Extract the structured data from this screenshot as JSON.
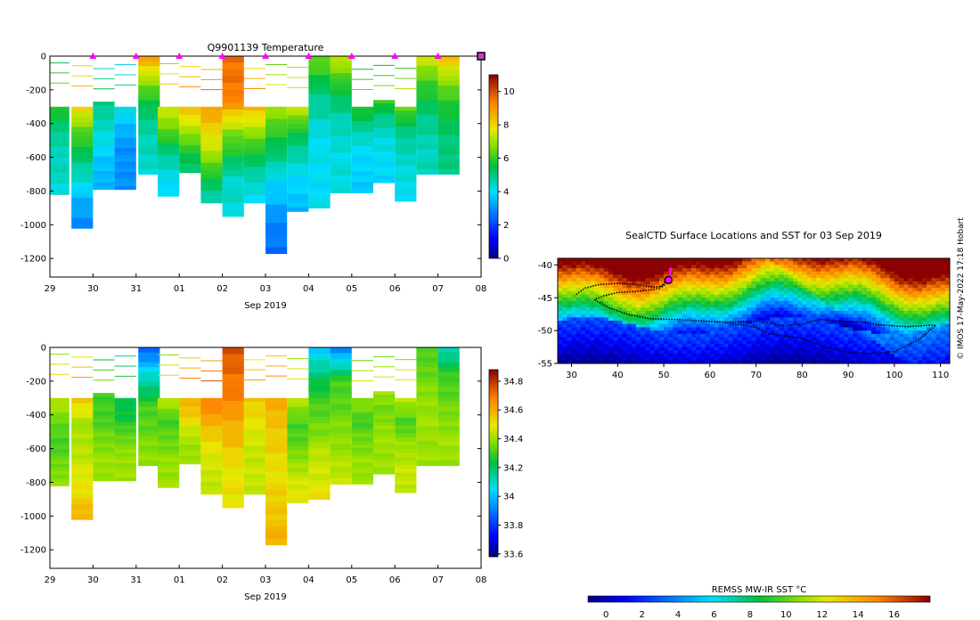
{
  "chart_data": [
    {
      "type": "heatmap",
      "id": "temp",
      "title": "Q9901139  Temperature",
      "xlabel": "Sep 2019",
      "x_tick_labels": [
        "29",
        "30",
        "31",
        "01",
        "02",
        "03",
        "04",
        "05",
        "06",
        "07",
        "08"
      ],
      "y_ticks": [
        0,
        -200,
        -400,
        -600,
        -800,
        -1000,
        -1200
      ],
      "ylim": [
        -1310,
        0
      ],
      "colorbar": {
        "min": 0,
        "max": 11,
        "ticks": [
          0,
          2,
          4,
          6,
          8,
          10
        ]
      },
      "surface_markers_at": [
        1,
        2,
        3,
        4,
        5,
        6,
        7,
        8,
        9,
        10
      ],
      "end_marker_at": 10,
      "profiles": [
        {
          "t": 0.2,
          "depth": 820,
          "top": 300,
          "c": [
            6,
            5,
            4.5,
            4.5,
            4.2
          ]
        },
        {
          "t": 0.75,
          "depth": 1020,
          "top": 300,
          "c": [
            8,
            6,
            4.8,
            3.5,
            2.8
          ]
        },
        {
          "t": 1.25,
          "depth": 790,
          "top": 270,
          "c": [
            5,
            4.5,
            4,
            3.5,
            3.5
          ]
        },
        {
          "t": 1.75,
          "depth": 790,
          "top": 300,
          "c": [
            4.2,
            3.5,
            3,
            3,
            3
          ]
        },
        {
          "t": 2.3,
          "depth": 700,
          "top": 0,
          "c": [
            9,
            6.5,
            5,
            4.5,
            4.3
          ]
        },
        {
          "t": 2.75,
          "depth": 830,
          "top": 300,
          "c": [
            7.5,
            6.5,
            5,
            4.2,
            3.8
          ]
        },
        {
          "t": 3.25,
          "depth": 690,
          "top": 300,
          "c": [
            8.5,
            7.5,
            6.5,
            5.5,
            5
          ]
        },
        {
          "t": 3.75,
          "depth": 870,
          "top": 300,
          "c": [
            9,
            8,
            7,
            5.5,
            4.5
          ]
        },
        {
          "t": 4.25,
          "depth": 950,
          "top": 0,
          "c": [
            9.5,
            9.5,
            6.5,
            4.5,
            4.2
          ]
        },
        {
          "t": 4.75,
          "depth": 870,
          "top": 300,
          "c": [
            8.5,
            7,
            5.5,
            4.5,
            4
          ]
        },
        {
          "t": 5.25,
          "depth": 1170,
          "top": 300,
          "c": [
            7,
            5.5,
            4,
            3,
            2.5
          ]
        },
        {
          "t": 5.75,
          "depth": 920,
          "top": 300,
          "c": [
            7.5,
            5.5,
            4.5,
            3.8,
            3.5
          ]
        },
        {
          "t": 6.25,
          "depth": 900,
          "top": 0,
          "c": [
            6.5,
            5,
            4.2,
            4,
            4
          ]
        },
        {
          "t": 6.75,
          "depth": 810,
          "top": 0,
          "c": [
            7.5,
            5.5,
            4.5,
            4.2,
            4.2
          ]
        },
        {
          "t": 7.25,
          "depth": 810,
          "top": 300,
          "c": [
            6,
            4.8,
            4,
            3.8,
            3.7
          ]
        },
        {
          "t": 7.75,
          "depth": 750,
          "top": 260,
          "c": [
            6,
            4.8,
            4.2,
            4,
            3.8
          ]
        },
        {
          "t": 8.25,
          "depth": 860,
          "top": 300,
          "c": [
            6.5,
            5,
            4.5,
            4.2,
            4
          ]
        },
        {
          "t": 8.75,
          "depth": 700,
          "top": 0,
          "c": [
            7.5,
            6,
            5,
            4.5,
            4.5
          ]
        },
        {
          "t": 9.25,
          "depth": 700,
          "top": 0,
          "c": [
            8.5,
            6.5,
            5.5,
            5,
            5
          ]
        }
      ]
    },
    {
      "type": "heatmap",
      "id": "sal",
      "title": "",
      "xlabel": "Sep 2019",
      "x_tick_labels": [
        "29",
        "30",
        "31",
        "01",
        "02",
        "03",
        "04",
        "05",
        "06",
        "07",
        "08"
      ],
      "y_ticks": [
        0,
        -200,
        -400,
        -600,
        -800,
        -1000,
        -1200
      ],
      "ylim": [
        -1310,
        0
      ],
      "colorbar": {
        "min": 33.58,
        "max": 34.88,
        "ticks": [
          33.6,
          33.8,
          34,
          34.2,
          34.4,
          34.6,
          34.8
        ]
      },
      "profiles": [
        {
          "t": 0.2,
          "depth": 820,
          "top": 300,
          "c": [
            34.45,
            34.35,
            34.3,
            34.35,
            34.4
          ]
        },
        {
          "t": 0.75,
          "depth": 1020,
          "top": 300,
          "c": [
            34.55,
            34.4,
            34.45,
            34.5,
            34.6
          ]
        },
        {
          "t": 1.25,
          "depth": 790,
          "top": 270,
          "c": [
            34.3,
            34.3,
            34.35,
            34.4,
            34.4
          ]
        },
        {
          "t": 1.75,
          "depth": 790,
          "top": 300,
          "c": [
            34.2,
            34.25,
            34.35,
            34.4,
            34.4
          ]
        },
        {
          "t": 2.3,
          "depth": 700,
          "top": 0,
          "c": [
            33.85,
            34.1,
            34.3,
            34.35,
            34.4
          ]
        },
        {
          "t": 2.75,
          "depth": 830,
          "top": 300,
          "c": [
            34.45,
            34.3,
            34.35,
            34.4,
            34.4
          ]
        },
        {
          "t": 3.25,
          "depth": 690,
          "top": 300,
          "c": [
            34.6,
            34.55,
            34.45,
            34.4,
            34.4
          ]
        },
        {
          "t": 3.75,
          "depth": 870,
          "top": 300,
          "c": [
            34.7,
            34.6,
            34.5,
            34.45,
            34.45
          ]
        },
        {
          "t": 4.25,
          "depth": 950,
          "top": 0,
          "c": [
            34.75,
            34.7,
            34.6,
            34.5,
            34.5
          ]
        },
        {
          "t": 4.75,
          "depth": 870,
          "top": 300,
          "c": [
            34.55,
            34.5,
            34.45,
            34.45,
            34.45
          ]
        },
        {
          "t": 5.25,
          "depth": 1170,
          "top": 300,
          "c": [
            34.6,
            34.55,
            34.5,
            34.55,
            34.6
          ]
        },
        {
          "t": 5.75,
          "depth": 920,
          "top": 300,
          "c": [
            34.45,
            34.3,
            34.35,
            34.45,
            34.5
          ]
        },
        {
          "t": 6.25,
          "depth": 900,
          "top": 0,
          "c": [
            34.0,
            34.25,
            34.35,
            34.45,
            34.5
          ]
        },
        {
          "t": 6.75,
          "depth": 810,
          "top": 0,
          "c": [
            33.9,
            34.3,
            34.35,
            34.4,
            34.45
          ]
        },
        {
          "t": 7.25,
          "depth": 810,
          "top": 300,
          "c": [
            34.4,
            34.3,
            34.35,
            34.4,
            34.4
          ]
        },
        {
          "t": 7.75,
          "depth": 750,
          "top": 260,
          "c": [
            34.4,
            34.35,
            34.4,
            34.4,
            34.4
          ]
        },
        {
          "t": 8.25,
          "depth": 860,
          "top": 300,
          "c": [
            34.45,
            34.3,
            34.4,
            34.45,
            34.45
          ]
        },
        {
          "t": 8.75,
          "depth": 700,
          "top": 0,
          "c": [
            34.3,
            34.35,
            34.4,
            34.4,
            34.4
          ]
        },
        {
          "t": 9.25,
          "depth": 700,
          "top": 0,
          "c": [
            34.1,
            34.3,
            34.35,
            34.4,
            34.4
          ]
        }
      ]
    },
    {
      "type": "scatter",
      "id": "map",
      "title": "SealCTD Surface Locations and SST for 03 Sep 2019",
      "x_ticks": [
        30,
        40,
        50,
        60,
        70,
        80,
        90,
        100,
        110
      ],
      "y_ticks": [
        -40,
        -45,
        -50,
        -55
      ],
      "xlim": [
        27,
        112
      ],
      "ylim": [
        -55,
        -39
      ],
      "colorbar_label": "REMSS MW-IR SST °C",
      "colorbar_ticks": [
        0,
        2,
        4,
        6,
        8,
        10,
        12,
        14,
        16
      ],
      "colorbar_range": [
        -1,
        18
      ],
      "track_lon": [
        31,
        33,
        36,
        40,
        44,
        46,
        48,
        50,
        50.8,
        49,
        45,
        40,
        37,
        35,
        38,
        42,
        47,
        52,
        58,
        64,
        70,
        73,
        76,
        80,
        85,
        90,
        95,
        100,
        105,
        109,
        107,
        103,
        98,
        94,
        90,
        87,
        84,
        82,
        80,
        76,
        72,
        69,
        64
      ],
      "track_lat": [
        -44.5,
        -43.5,
        -43,
        -42.8,
        -43,
        -43.2,
        -43.4,
        -43.2,
        -42.2,
        -43.6,
        -44,
        -44.2,
        -44.7,
        -45.3,
        -46.5,
        -47.5,
        -48.2,
        -48.3,
        -48.5,
        -48.8,
        -49.5,
        -50.5,
        -50.8,
        -51.2,
        -52.5,
        -53.3,
        -53.5,
        -53.2,
        -51.5,
        -49.2,
        -49.2,
        -49.4,
        -49.2,
        -48.8,
        -48.6,
        -48.5,
        -48.3,
        -48.6,
        -49,
        -49.3,
        -48.7,
        -48.6,
        -48.7
      ],
      "magenta_track_lon": [
        51.2,
        51.4,
        51.6
      ],
      "magenta_track_lat": [
        -42.3,
        -41.2,
        -40.4
      ],
      "current_lon": 51,
      "current_lat": -42.3
    }
  ],
  "credit": "© IMOS 17-May-2022 17:18 Hobart"
}
